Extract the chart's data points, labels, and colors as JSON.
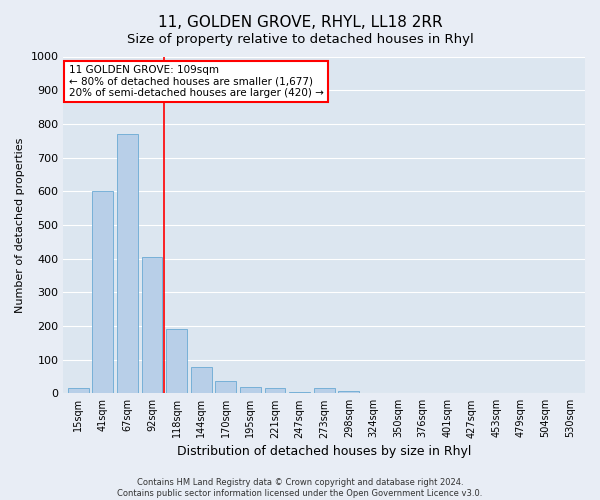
{
  "title": "11, GOLDEN GROVE, RHYL, LL18 2RR",
  "subtitle": "Size of property relative to detached houses in Rhyl",
  "xlabel": "Distribution of detached houses by size in Rhyl",
  "ylabel": "Number of detached properties",
  "categories": [
    "15sqm",
    "41sqm",
    "67sqm",
    "92sqm",
    "118sqm",
    "144sqm",
    "170sqm",
    "195sqm",
    "221sqm",
    "247sqm",
    "273sqm",
    "298sqm",
    "324sqm",
    "350sqm",
    "376sqm",
    "401sqm",
    "427sqm",
    "453sqm",
    "479sqm",
    "504sqm",
    "530sqm"
  ],
  "values": [
    15,
    600,
    770,
    405,
    190,
    78,
    38,
    18,
    15,
    5,
    15,
    8,
    0,
    0,
    0,
    0,
    0,
    0,
    0,
    0,
    0
  ],
  "bar_color": "#b8cfe8",
  "bar_edge_color": "#6aaad4",
  "vline_x": 3.5,
  "vline_color": "red",
  "annotation_line1": "11 GOLDEN GROVE: 109sqm",
  "annotation_line2": "← 80% of detached houses are smaller (1,677)",
  "annotation_line3": "20% of semi-detached houses are larger (420) →",
  "ylim": [
    0,
    1000
  ],
  "yticks": [
    0,
    100,
    200,
    300,
    400,
    500,
    600,
    700,
    800,
    900,
    1000
  ],
  "fig_bg": "#e8edf5",
  "ax_bg": "#dce6f0",
  "grid_color": "#ffffff",
  "footer": "Contains HM Land Registry data © Crown copyright and database right 2024.\nContains public sector information licensed under the Open Government Licence v3.0.",
  "title_fontsize": 11,
  "subtitle_fontsize": 9.5,
  "ylabel_fontsize": 8,
  "xlabel_fontsize": 9,
  "ytick_fontsize": 8,
  "xtick_fontsize": 7,
  "annotation_fontsize": 7.5,
  "footer_fontsize": 6
}
